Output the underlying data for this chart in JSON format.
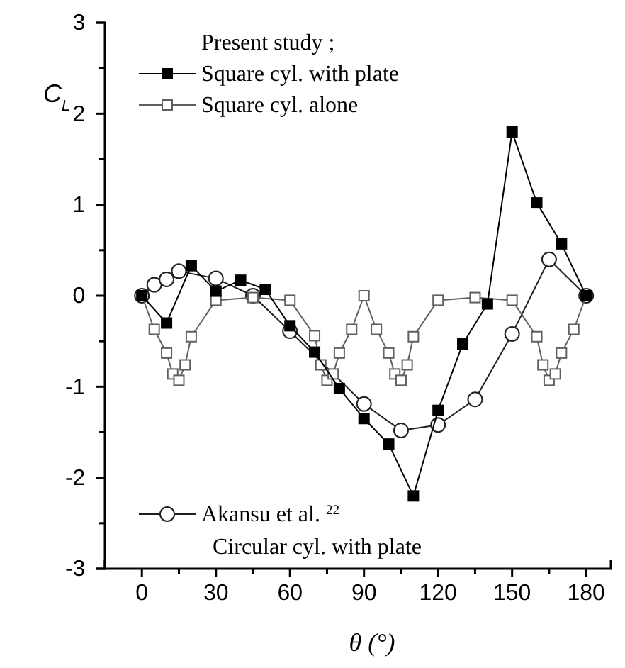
{
  "chart_data": {
    "type": "line",
    "xlabel": "θ (°)",
    "ylabel": "C$_{L}$",
    "legend_title": "Present study ;",
    "legend": "left",
    "xlim": [
      -15,
      190
    ],
    "xticks": [
      0,
      30,
      60,
      90,
      120,
      150,
      180
    ],
    "ylim": [
      -3,
      3
    ],
    "yticks": [
      -3,
      -2,
      -1,
      0,
      1,
      2,
      3
    ],
    "annotations": [
      "Circular cyl. with plate"
    ],
    "series": [
      {
        "name": "Square cyl. with plate",
        "color": "#000000",
        "marker": "square",
        "x": [
          0,
          10,
          20,
          30,
          40,
          50,
          60,
          70,
          80,
          90,
          100,
          110,
          120,
          130,
          140,
          150,
          160,
          170,
          180
        ],
        "values": [
          0,
          -0.3,
          0.33,
          0.05,
          0.17,
          0.07,
          -0.33,
          -0.62,
          -1.02,
          -1.35,
          -1.63,
          -2.2,
          -1.26,
          -0.53,
          -0.09,
          1.8,
          1.02,
          0.57,
          0
        ]
      },
      {
        "name": "Square cyl. alone",
        "color": "#606060",
        "marker": "square",
        "x": [
          0,
          5,
          10,
          12.5,
          15,
          17.5,
          20,
          30,
          45,
          60,
          70,
          72.5,
          75,
          77.5,
          80,
          85,
          90,
          95,
          100,
          102.5,
          105,
          107.5,
          110,
          120,
          135,
          150,
          160,
          162.5,
          165,
          167.5,
          170,
          175,
          180
        ],
        "values": [
          0,
          -0.37,
          -0.63,
          -0.86,
          -0.93,
          -0.76,
          -0.45,
          -0.05,
          -0.02,
          -0.05,
          -0.44,
          -0.76,
          -0.93,
          -0.86,
          -0.63,
          -0.37,
          0,
          -0.37,
          -0.63,
          -0.86,
          -0.93,
          -0.76,
          -0.45,
          -0.05,
          -0.02,
          -0.05,
          -0.45,
          -0.76,
          -0.93,
          -0.86,
          -0.63,
          -0.37,
          0
        ]
      },
      {
        "name": "Akansu et al. $^{22}$",
        "color": "#202020",
        "marker": "circle",
        "x": [
          0,
          5,
          10,
          15,
          30,
          45,
          60,
          90,
          105,
          120,
          135,
          150,
          165,
          180
        ],
        "values": [
          0,
          0.12,
          0.18,
          0.27,
          0.19,
          0,
          -0.39,
          -1.19,
          -1.48,
          -1.42,
          -1.14,
          -0.42,
          0.4,
          0
        ]
      }
    ]
  }
}
